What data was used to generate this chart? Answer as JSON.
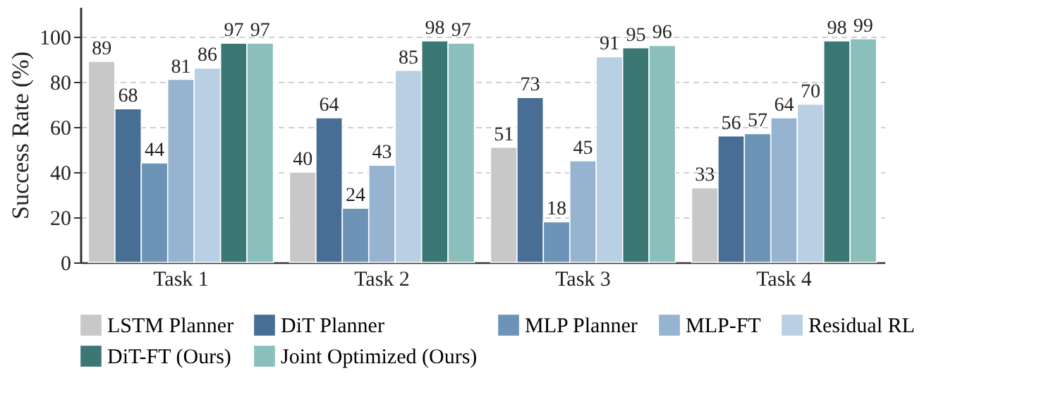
{
  "chart_data": {
    "type": "bar",
    "ylabel": "Success Rate (%)",
    "categories": [
      "Task 1",
      "Task 2",
      "Task 3",
      "Task 4"
    ],
    "series": [
      {
        "name": "LSTM Planner",
        "color": "#c8c8c8",
        "values": [
          89,
          40,
          51,
          33
        ]
      },
      {
        "name": "DiT Planner",
        "color": "#496e96",
        "values": [
          68,
          64,
          73,
          56
        ]
      },
      {
        "name": "MLP Planner",
        "color": "#6d94b7",
        "values": [
          44,
          24,
          18,
          57
        ]
      },
      {
        "name": "MLP-FT",
        "color": "#96b3cf",
        "values": [
          81,
          43,
          45,
          64
        ]
      },
      {
        "name": "Residual RL",
        "color": "#b9cfe4",
        "values": [
          86,
          85,
          91,
          70
        ]
      },
      {
        "name": "DiT-FT (Ours)",
        "color": "#3c7873",
        "values": [
          97,
          98,
          95,
          98
        ]
      },
      {
        "name": "Joint Optimized (Ours)",
        "color": "#8abfbb",
        "values": [
          97,
          97,
          96,
          99
        ]
      }
    ],
    "ylim": [
      0,
      113
    ],
    "yticks": [
      0,
      20,
      40,
      60,
      80,
      100
    ],
    "grid": "y",
    "legend": "bottom",
    "data_labels": true
  }
}
